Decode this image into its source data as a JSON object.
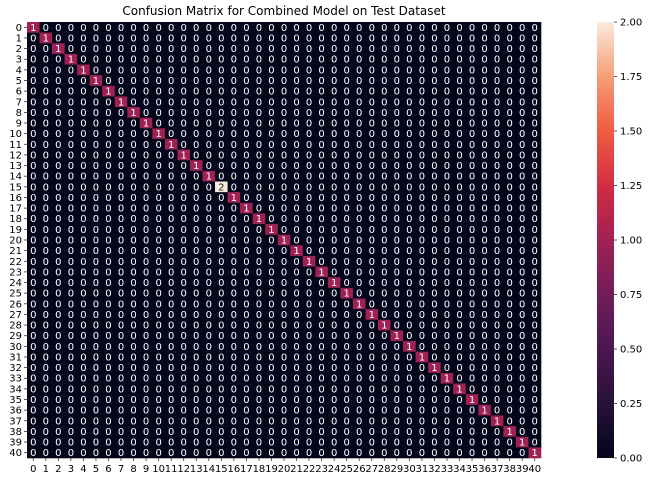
{
  "chart_data": {
    "type": "heatmap",
    "title": "Confusion Matrix for Combined Model on Test Dataset",
    "xlabel": "",
    "ylabel": "",
    "x_labels": [
      "0",
      "1",
      "2",
      "3",
      "4",
      "5",
      "6",
      "7",
      "8",
      "9",
      "10",
      "11",
      "12",
      "13",
      "14",
      "15",
      "16",
      "17",
      "18",
      "19",
      "20",
      "21",
      "22",
      "23",
      "24",
      "25",
      "26",
      "27",
      "28",
      "29",
      "30",
      "31",
      "32",
      "33",
      "34",
      "35",
      "36",
      "37",
      "38",
      "39",
      "40"
    ],
    "y_labels": [
      "0",
      "1",
      "2",
      "3",
      "4",
      "5",
      "6",
      "7",
      "8",
      "9",
      "10",
      "11",
      "12",
      "13",
      "14",
      "15",
      "16",
      "17",
      "18",
      "19",
      "20",
      "21",
      "22",
      "23",
      "24",
      "25",
      "26",
      "27",
      "28",
      "29",
      "30",
      "31",
      "32",
      "33",
      "34",
      "35",
      "36",
      "37",
      "38",
      "39",
      "40"
    ],
    "diagonal": [
      1,
      1,
      1,
      1,
      1,
      1,
      1,
      1,
      1,
      1,
      1,
      1,
      1,
      1,
      1,
      2,
      1,
      1,
      1,
      1,
      1,
      1,
      1,
      1,
      1,
      1,
      1,
      1,
      1,
      1,
      1,
      1,
      1,
      1,
      1,
      1,
      1,
      1,
      1,
      1,
      1
    ],
    "off_diagonal_value": 0,
    "color_range": [
      0,
      2
    ],
    "colorbar_ticks": [
      "0.00",
      "0.25",
      "0.50",
      "0.75",
      "1.00",
      "1.25",
      "1.50",
      "1.75",
      "2.00"
    ],
    "colormap": "rocket",
    "annotations": true
  }
}
